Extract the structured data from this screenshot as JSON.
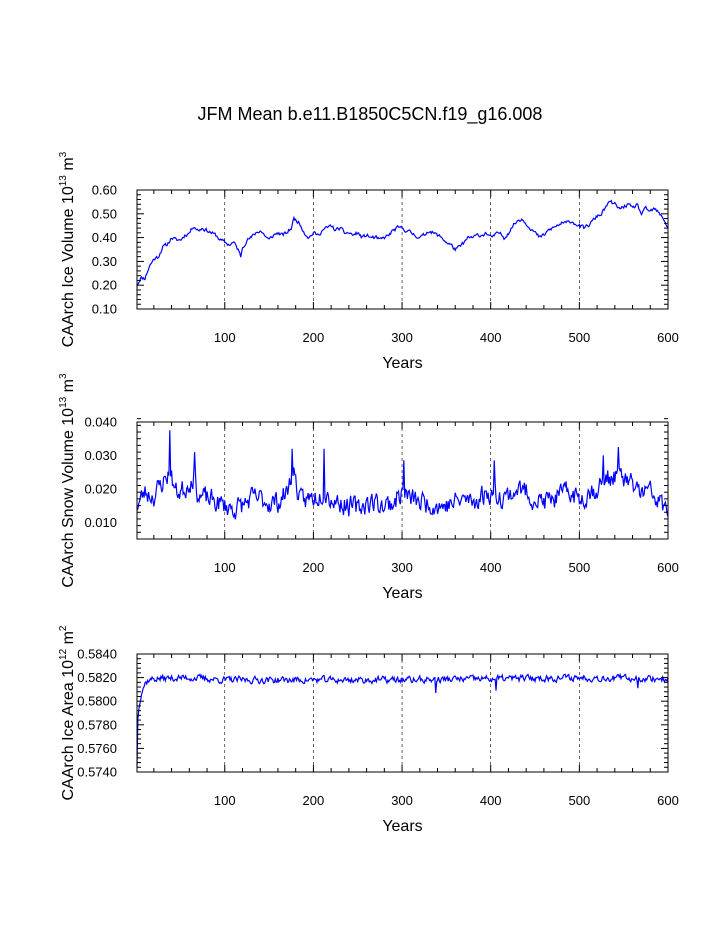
{
  "title": "JFM Mean b.e11.B1850C5CN.f19_g16.008",
  "chart_data": [
    {
      "type": "line",
      "id": "volume",
      "title": "",
      "xlabel": "Years",
      "ylabel_main": "CAArch Ice Volume 10",
      "ylabel_exp": "13",
      "ylabel_unit": " m",
      "ylabel_unit_exp": "3",
      "xlim": [
        1,
        600
      ],
      "ylim": [
        0.1,
        0.6
      ],
      "xticks": [
        100,
        200,
        300,
        400,
        500,
        600
      ],
      "yticks": [
        0.1,
        0.2,
        0.3,
        0.4,
        0.5,
        0.6
      ],
      "ytick_labels": [
        "0.10",
        "0.20",
        "0.30",
        "0.40",
        "0.50",
        "0.60"
      ],
      "yminor": 0.02,
      "series_color": "#0000ff",
      "anchors": [
        [
          1,
          0.2
        ],
        [
          5,
          0.23
        ],
        [
          10,
          0.23
        ],
        [
          15,
          0.28
        ],
        [
          20,
          0.31
        ],
        [
          25,
          0.32
        ],
        [
          30,
          0.36
        ],
        [
          35,
          0.37
        ],
        [
          40,
          0.4
        ],
        [
          45,
          0.39
        ],
        [
          50,
          0.39
        ],
        [
          55,
          0.41
        ],
        [
          60,
          0.42
        ],
        [
          65,
          0.45
        ],
        [
          70,
          0.43
        ],
        [
          75,
          0.44
        ],
        [
          80,
          0.43
        ],
        [
          85,
          0.42
        ],
        [
          90,
          0.41
        ],
        [
          95,
          0.39
        ],
        [
          100,
          0.38
        ],
        [
          105,
          0.37
        ],
        [
          110,
          0.38
        ],
        [
          115,
          0.35
        ],
        [
          118,
          0.32
        ],
        [
          120,
          0.36
        ],
        [
          125,
          0.39
        ],
        [
          130,
          0.4
        ],
        [
          135,
          0.42
        ],
        [
          140,
          0.43
        ],
        [
          145,
          0.41
        ],
        [
          150,
          0.39
        ],
        [
          155,
          0.41
        ],
        [
          160,
          0.42
        ],
        [
          165,
          0.41
        ],
        [
          170,
          0.42
        ],
        [
          175,
          0.44
        ],
        [
          178,
          0.48
        ],
        [
          182,
          0.47
        ],
        [
          186,
          0.45
        ],
        [
          190,
          0.42
        ],
        [
          195,
          0.4
        ],
        [
          200,
          0.42
        ],
        [
          205,
          0.41
        ],
        [
          210,
          0.43
        ],
        [
          215,
          0.44
        ],
        [
          220,
          0.45
        ],
        [
          225,
          0.43
        ],
        [
          230,
          0.44
        ],
        [
          235,
          0.42
        ],
        [
          240,
          0.42
        ],
        [
          245,
          0.41
        ],
        [
          250,
          0.42
        ],
        [
          255,
          0.4
        ],
        [
          260,
          0.41
        ],
        [
          265,
          0.4
        ],
        [
          270,
          0.4
        ],
        [
          275,
          0.39
        ],
        [
          280,
          0.4
        ],
        [
          285,
          0.41
        ],
        [
          290,
          0.43
        ],
        [
          295,
          0.44
        ],
        [
          300,
          0.44
        ],
        [
          305,
          0.43
        ],
        [
          310,
          0.42
        ],
        [
          315,
          0.41
        ],
        [
          320,
          0.4
        ],
        [
          325,
          0.41
        ],
        [
          330,
          0.43
        ],
        [
          335,
          0.42
        ],
        [
          340,
          0.41
        ],
        [
          345,
          0.4
        ],
        [
          350,
          0.38
        ],
        [
          355,
          0.37
        ],
        [
          360,
          0.35
        ],
        [
          365,
          0.36
        ],
        [
          370,
          0.38
        ],
        [
          375,
          0.4
        ],
        [
          380,
          0.4
        ],
        [
          385,
          0.41
        ],
        [
          390,
          0.41
        ],
        [
          395,
          0.42
        ],
        [
          400,
          0.4
        ],
        [
          405,
          0.41
        ],
        [
          410,
          0.42
        ],
        [
          415,
          0.4
        ],
        [
          420,
          0.42
        ],
        [
          425,
          0.45
        ],
        [
          430,
          0.47
        ],
        [
          435,
          0.48
        ],
        [
          440,
          0.46
        ],
        [
          445,
          0.44
        ],
        [
          450,
          0.42
        ],
        [
          455,
          0.4
        ],
        [
          460,
          0.41
        ],
        [
          465,
          0.43
        ],
        [
          470,
          0.44
        ],
        [
          475,
          0.45
        ],
        [
          480,
          0.46
        ],
        [
          485,
          0.46
        ],
        [
          490,
          0.47
        ],
        [
          495,
          0.46
        ],
        [
          500,
          0.45
        ],
        [
          505,
          0.44
        ],
        [
          510,
          0.45
        ],
        [
          515,
          0.47
        ],
        [
          520,
          0.49
        ],
        [
          525,
          0.5
        ],
        [
          530,
          0.53
        ],
        [
          535,
          0.55
        ],
        [
          540,
          0.54
        ],
        [
          545,
          0.52
        ],
        [
          550,
          0.53
        ],
        [
          555,
          0.54
        ],
        [
          560,
          0.52
        ],
        [
          565,
          0.54
        ],
        [
          570,
          0.5
        ],
        [
          575,
          0.52
        ],
        [
          580,
          0.51
        ],
        [
          585,
          0.52
        ],
        [
          590,
          0.5
        ],
        [
          595,
          0.48
        ],
        [
          600,
          0.44
        ]
      ],
      "noise_amp": 0.007,
      "seed": 11
    },
    {
      "type": "line",
      "id": "snow",
      "title": "",
      "xlabel": "Years",
      "ylabel_main": "CAArch Snow Volume 10",
      "ylabel_exp": "13",
      "ylabel_unit": " m",
      "ylabel_unit_exp": "3",
      "xlim": [
        1,
        600
      ],
      "ylim": [
        0.005,
        0.04
      ],
      "xticks": [
        100,
        200,
        300,
        400,
        500,
        600
      ],
      "yticks": [
        0.01,
        0.02,
        0.03,
        0.04
      ],
      "ytick_labels": [
        "0.010",
        "0.020",
        "0.030",
        "0.040"
      ],
      "yminor": 0.002,
      "series_color": "#0000ff",
      "anchors": [
        [
          1,
          0.015
        ],
        [
          10,
          0.019
        ],
        [
          20,
          0.018
        ],
        [
          30,
          0.022
        ],
        [
          38,
          0.025
        ],
        [
          45,
          0.019
        ],
        [
          55,
          0.02
        ],
        [
          65,
          0.024
        ],
        [
          70,
          0.018
        ],
        [
          80,
          0.017
        ],
        [
          90,
          0.016
        ],
        [
          100,
          0.015
        ],
        [
          110,
          0.014
        ],
        [
          120,
          0.015
        ],
        [
          130,
          0.017
        ],
        [
          140,
          0.017
        ],
        [
          150,
          0.016
        ],
        [
          160,
          0.016
        ],
        [
          170,
          0.019
        ],
        [
          178,
          0.025
        ],
        [
          185,
          0.016
        ],
        [
          195,
          0.017
        ],
        [
          205,
          0.018
        ],
        [
          212,
          0.02
        ],
        [
          220,
          0.017
        ],
        [
          230,
          0.016
        ],
        [
          240,
          0.015
        ],
        [
          250,
          0.014
        ],
        [
          260,
          0.016
        ],
        [
          270,
          0.016
        ],
        [
          280,
          0.015
        ],
        [
          290,
          0.016
        ],
        [
          300,
          0.019
        ],
        [
          310,
          0.017
        ],
        [
          320,
          0.016
        ],
        [
          330,
          0.016
        ],
        [
          340,
          0.015
        ],
        [
          350,
          0.015
        ],
        [
          360,
          0.016
        ],
        [
          370,
          0.017
        ],
        [
          380,
          0.016
        ],
        [
          390,
          0.018
        ],
        [
          400,
          0.019
        ],
        [
          410,
          0.018
        ],
        [
          420,
          0.018
        ],
        [
          430,
          0.02
        ],
        [
          440,
          0.019
        ],
        [
          450,
          0.017
        ],
        [
          460,
          0.016
        ],
        [
          470,
          0.017
        ],
        [
          480,
          0.018
        ],
        [
          490,
          0.019
        ],
        [
          500,
          0.017
        ],
        [
          510,
          0.019
        ],
        [
          520,
          0.02
        ],
        [
          530,
          0.023
        ],
        [
          540,
          0.024
        ],
        [
          550,
          0.023
        ],
        [
          560,
          0.021
        ],
        [
          570,
          0.019
        ],
        [
          580,
          0.019
        ],
        [
          590,
          0.016
        ],
        [
          600,
          0.013
        ]
      ],
      "noise_amp": 0.0028,
      "spikes": [
        [
          38,
          0.0375
        ],
        [
          66,
          0.031
        ],
        [
          176,
          0.032
        ],
        [
          212,
          0.032
        ],
        [
          302,
          0.0285
        ],
        [
          404,
          0.0285
        ],
        [
          527,
          0.03
        ],
        [
          544,
          0.0325
        ]
      ],
      "seed": 23
    },
    {
      "type": "line",
      "id": "area",
      "title": "",
      "xlabel": "Years",
      "ylabel_main": "CAArch Ice Area 10",
      "ylabel_exp": "12",
      "ylabel_unit": " m",
      "ylabel_unit_exp": "2",
      "xlim": [
        1,
        600
      ],
      "ylim": [
        0.574,
        0.584
      ],
      "xticks": [
        100,
        200,
        300,
        400,
        500,
        600
      ],
      "yticks": [
        0.574,
        0.576,
        0.578,
        0.58,
        0.582,
        0.584
      ],
      "ytick_labels": [
        "0.5740",
        "0.5760",
        "0.5780",
        "0.5800",
        "0.5820",
        "0.5840"
      ],
      "yminor": 0.0004,
      "series_color": "#0000ff",
      "anchors": [
        [
          1,
          0.5745
        ],
        [
          2,
          0.5785
        ],
        [
          4,
          0.58
        ],
        [
          6,
          0.5808
        ],
        [
          8,
          0.5812
        ],
        [
          10,
          0.5815
        ],
        [
          14,
          0.5818
        ],
        [
          20,
          0.5819
        ],
        [
          60,
          0.582
        ],
        [
          100,
          0.5818
        ],
        [
          200,
          0.5818
        ],
        [
          300,
          0.5818
        ],
        [
          400,
          0.5819
        ],
        [
          500,
          0.582
        ],
        [
          600,
          0.5819
        ]
      ],
      "noise_amp": 0.00025,
      "dips": [
        [
          338,
          0.5807
        ],
        [
          406,
          0.5809
        ],
        [
          566,
          0.5811
        ]
      ],
      "seed": 37
    }
  ]
}
